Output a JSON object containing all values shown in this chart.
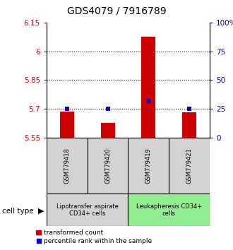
{
  "title": "GDS4079 / 7916789",
  "samples": [
    "GSM779418",
    "GSM779420",
    "GSM779419",
    "GSM779421"
  ],
  "red_values": [
    5.685,
    5.625,
    6.075,
    5.682
  ],
  "blue_values": [
    5.7,
    5.7,
    5.742,
    5.7
  ],
  "ymin": 5.55,
  "ymax": 6.15,
  "yticks_left": [
    5.55,
    5.7,
    5.85,
    6.0,
    6.15
  ],
  "yticks_left_labels": [
    "5.55",
    "5.7",
    "5.85",
    "6",
    "6.15"
  ],
  "yticks_right_vals": [
    5.55,
    5.7,
    5.85,
    6.0,
    6.15
  ],
  "yticks_right_labels": [
    "0",
    "25",
    "50",
    "75",
    "100%"
  ],
  "hlines": [
    5.7,
    5.85,
    6.0
  ],
  "bar_bottom": 5.55,
  "bar_width": 0.35,
  "group1_label": "Lipotransfer aspirate\nCD34+ cells",
  "group2_label": "Leukapheresis CD34+\ncells",
  "cell_type_label": "cell type",
  "legend_red": "transformed count",
  "legend_blue": "percentile rank within the sample",
  "group1_color": "#d3d3d3",
  "group2_color": "#90EE90",
  "red_color": "#cc0000",
  "blue_color": "#0000cc",
  "title_fontsize": 10,
  "tick_fontsize": 7.5,
  "label_fontsize": 7
}
